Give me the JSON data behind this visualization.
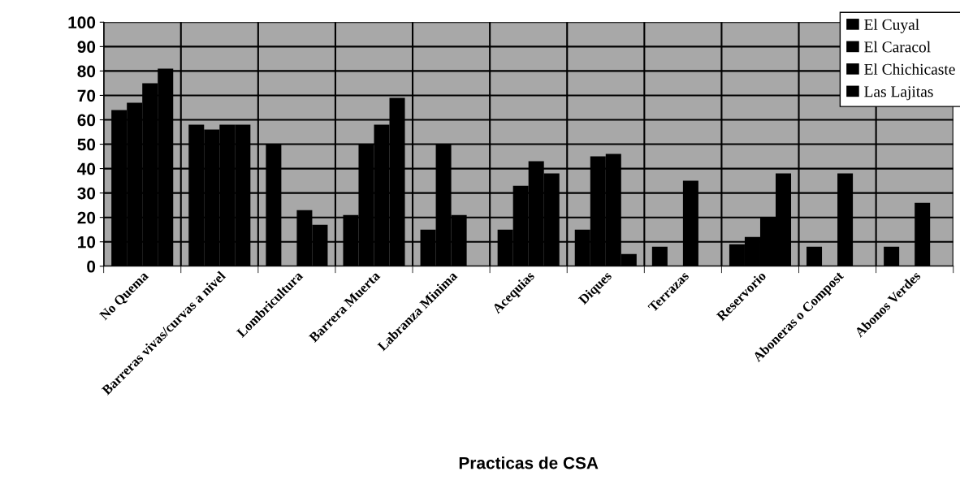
{
  "chart_data": {
    "type": "bar",
    "xlabel": "Practicas de CSA",
    "categories": [
      "No Quema",
      "Barreras vivas/curvas a nivel",
      "Lombricultura",
      "Barrera Muerta",
      "Labranza Minima",
      "Acequias",
      "Diques",
      "Terrazas",
      "Reservorio",
      "Aboneras o Compost",
      "Abonos Verdes"
    ],
    "series": [
      {
        "name": "El Cuyal",
        "color": "#000000",
        "values": [
          64,
          58,
          50,
          21,
          15,
          15,
          15,
          8,
          9,
          8,
          8
        ]
      },
      {
        "name": "El Caracol",
        "color": "#000000",
        "values": [
          67,
          56,
          0,
          50,
          50,
          33,
          45,
          0,
          12,
          0,
          0
        ]
      },
      {
        "name": "El Chichicaste",
        "color": "#000000",
        "values": [
          75,
          58,
          23,
          58,
          21,
          43,
          46,
          35,
          20,
          38,
          26
        ]
      },
      {
        "name": "Las Lajitas",
        "color": "#000000",
        "values": [
          81,
          58,
          17,
          69,
          0,
          38,
          5,
          0,
          38,
          0,
          0
        ]
      }
    ],
    "ylim": [
      0,
      100
    ],
    "yticks": [
      0,
      10,
      20,
      30,
      40,
      50,
      60,
      70,
      80,
      90,
      100
    ],
    "grid": true,
    "legend": "top right"
  }
}
